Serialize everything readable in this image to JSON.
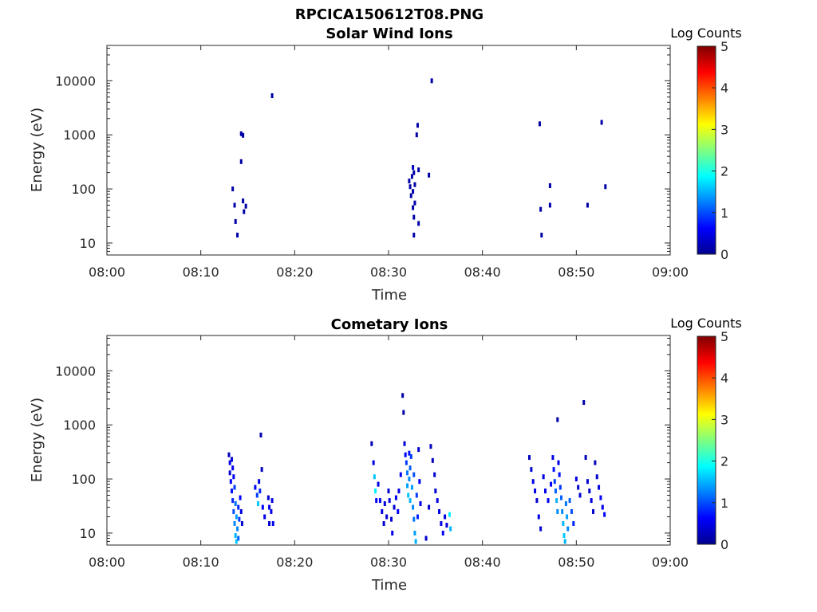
{
  "figure": {
    "title": "RPCICA150612T08.PNG"
  },
  "chart_data": [
    {
      "type": "heatmap",
      "title": "Solar Wind Ions",
      "xlabel": "Time",
      "ylabel": "Energy (eV)",
      "x_ticks": [
        "08:00",
        "08:10",
        "08:20",
        "08:30",
        "08:40",
        "08:50",
        "09:00"
      ],
      "xlim_minutes": [
        0,
        60
      ],
      "y_scale": "log",
      "y_ticks": [
        "10",
        "100",
        "1000",
        "10000"
      ],
      "y_tick_values": [
        10,
        100,
        1000,
        10000
      ],
      "ylim": [
        6,
        45000
      ],
      "colorbar": {
        "label": "Log Counts",
        "range": [
          0,
          5
        ],
        "ticks": [
          "0",
          "1",
          "2",
          "3",
          "4",
          "5"
        ],
        "colormap": "jet"
      },
      "points": [
        [
          13.4,
          100,
          0.2
        ],
        [
          13.6,
          50,
          0.2
        ],
        [
          13.7,
          25,
          0.2
        ],
        [
          13.9,
          14,
          0.2
        ],
        [
          14.3,
          320,
          0.2
        ],
        [
          14.3,
          1050,
          0.2
        ],
        [
          14.5,
          980,
          0.2
        ],
        [
          14.5,
          60,
          0.2
        ],
        [
          14.6,
          38,
          0.2
        ],
        [
          14.8,
          48,
          0.2
        ],
        [
          17.6,
          5300,
          0.2
        ],
        [
          32.2,
          140,
          0.2
        ],
        [
          32.3,
          110,
          0.2
        ],
        [
          32.4,
          75,
          0.2
        ],
        [
          32.5,
          170,
          0.2
        ],
        [
          32.6,
          250,
          0.3
        ],
        [
          32.6,
          90,
          0.2
        ],
        [
          32.6,
          45,
          0.2
        ],
        [
          32.7,
          200,
          0.2
        ],
        [
          32.7,
          30,
          0.2
        ],
        [
          32.7,
          14,
          0.2
        ],
        [
          32.8,
          120,
          0.2
        ],
        [
          32.8,
          55,
          0.2
        ],
        [
          33.0,
          1000,
          0.2
        ],
        [
          33.1,
          1500,
          0.2
        ],
        [
          33.2,
          225,
          0.2
        ],
        [
          33.2,
          23,
          0.2
        ],
        [
          34.3,
          180,
          0.2
        ],
        [
          34.6,
          10000,
          0.2
        ],
        [
          46.1,
          1600,
          0.2
        ],
        [
          46.2,
          42,
          0.2
        ],
        [
          46.3,
          14,
          0.2
        ],
        [
          47.2,
          115,
          0.2
        ],
        [
          47.2,
          50,
          0.2
        ],
        [
          51.2,
          50,
          0.2
        ],
        [
          52.7,
          1700,
          0.2
        ],
        [
          53.1,
          110,
          0.2
        ]
      ]
    },
    {
      "type": "heatmap",
      "title": "Cometary Ions",
      "xlabel": "Time",
      "ylabel": "Energy (eV)",
      "x_ticks": [
        "08:00",
        "08:10",
        "08:20",
        "08:30",
        "08:40",
        "08:50",
        "09:00"
      ],
      "xlim_minutes": [
        0,
        60
      ],
      "y_scale": "log",
      "y_ticks": [
        "10",
        "100",
        "1000",
        "10000"
      ],
      "y_tick_values": [
        10,
        100,
        1000,
        10000
      ],
      "ylim": [
        6,
        45000
      ],
      "colorbar": {
        "label": "Log Counts",
        "range": [
          0,
          5
        ],
        "ticks": [
          "0",
          "1",
          "2",
          "3",
          "4",
          "5"
        ],
        "colormap": "jet"
      },
      "points": [
        [
          13.0,
          280,
          0.3
        ],
        [
          13.1,
          200,
          0.5
        ],
        [
          13.1,
          130,
          0.4
        ],
        [
          13.2,
          90,
          0.6
        ],
        [
          13.3,
          230,
          0.4
        ],
        [
          13.3,
          60,
          0.7
        ],
        [
          13.4,
          160,
          0.5
        ],
        [
          13.4,
          40,
          0.8
        ],
        [
          13.5,
          110,
          0.6
        ],
        [
          13.5,
          25,
          1.0
        ],
        [
          13.6,
          70,
          0.9
        ],
        [
          13.6,
          15,
          1.3
        ],
        [
          13.7,
          35,
          1.2
        ],
        [
          13.7,
          9,
          1.5
        ],
        [
          13.8,
          20,
          1.4
        ],
        [
          13.8,
          7,
          1.6
        ],
        [
          13.9,
          12,
          1.3
        ],
        [
          14.0,
          30,
          0.8
        ],
        [
          14.0,
          8,
          1.1
        ],
        [
          14.1,
          18,
          0.9
        ],
        [
          14.2,
          45,
          0.6
        ],
        [
          14.3,
          25,
          0.5
        ],
        [
          14.4,
          15,
          0.4
        ],
        [
          15.8,
          70,
          0.6
        ],
        [
          16.0,
          50,
          0.9
        ],
        [
          16.1,
          35,
          1.6
        ],
        [
          16.2,
          90,
          0.5
        ],
        [
          16.3,
          60,
          0.8
        ],
        [
          16.4,
          650,
          0.2
        ],
        [
          16.5,
          150,
          0.3
        ],
        [
          16.6,
          30,
          0.6
        ],
        [
          16.8,
          20,
          0.5
        ],
        [
          17.2,
          45,
          0.4
        ],
        [
          17.3,
          30,
          0.5
        ],
        [
          17.3,
          15,
          0.4
        ],
        [
          17.5,
          25,
          0.5
        ],
        [
          17.6,
          40,
          0.5
        ],
        [
          17.7,
          15,
          0.5
        ],
        [
          28.2,
          450,
          0.3
        ],
        [
          28.4,
          200,
          0.5
        ],
        [
          28.5,
          110,
          1.6
        ],
        [
          28.6,
          60,
          1.8
        ],
        [
          28.7,
          40,
          0.6
        ],
        [
          28.9,
          80,
          0.5
        ],
        [
          29.1,
          40,
          0.6
        ],
        [
          29.3,
          25,
          0.5
        ],
        [
          29.5,
          15,
          0.4
        ],
        [
          29.6,
          35,
          0.5
        ],
        [
          29.8,
          20,
          0.4
        ],
        [
          30.0,
          60,
          0.4
        ],
        [
          30.1,
          40,
          0.5
        ],
        [
          30.3,
          18,
          0.4
        ],
        [
          30.4,
          10,
          0.5
        ],
        [
          30.6,
          30,
          0.4
        ],
        [
          30.8,
          45,
          0.5
        ],
        [
          31.0,
          25,
          0.6
        ],
        [
          31.1,
          60,
          0.5
        ],
        [
          31.3,
          120,
          0.6
        ],
        [
          31.5,
          3500,
          0.2
        ],
        [
          31.6,
          1700,
          0.2
        ],
        [
          31.7,
          450,
          0.4
        ],
        [
          31.8,
          280,
          0.6
        ],
        [
          31.9,
          200,
          0.9
        ],
        [
          32.0,
          130,
          1.2
        ],
        [
          32.0,
          75,
          1.4
        ],
        [
          32.1,
          50,
          1.6
        ],
        [
          32.2,
          300,
          0.7
        ],
        [
          32.2,
          100,
          1.3
        ],
        [
          32.3,
          40,
          1.5
        ],
        [
          32.3,
          160,
          1.1
        ],
        [
          32.4,
          260,
          0.9
        ],
        [
          32.5,
          70,
          1.4
        ],
        [
          32.6,
          30,
          1.3
        ],
        [
          32.7,
          18,
          1.2
        ],
        [
          32.7,
          120,
          1.0
        ],
        [
          32.8,
          10,
          1.4
        ],
        [
          32.9,
          7,
          1.5
        ],
        [
          33.0,
          50,
          0.9
        ],
        [
          33.1,
          20,
          0.8
        ],
        [
          33.2,
          350,
          0.4
        ],
        [
          33.3,
          90,
          0.6
        ],
        [
          33.4,
          35,
          0.5
        ],
        [
          34.0,
          8,
          0.4
        ],
        [
          34.3,
          30,
          0.4
        ],
        [
          34.5,
          400,
          0.3
        ],
        [
          34.7,
          220,
          0.3
        ],
        [
          34.9,
          120,
          0.4
        ],
        [
          35.0,
          60,
          0.4
        ],
        [
          35.2,
          40,
          0.5
        ],
        [
          35.4,
          25,
          0.5
        ],
        [
          35.6,
          15,
          0.5
        ],
        [
          35.8,
          10,
          0.6
        ],
        [
          36.0,
          20,
          0.5
        ],
        [
          36.2,
          14,
          0.4
        ],
        [
          36.5,
          22,
          1.8
        ],
        [
          36.6,
          12,
          1.5
        ],
        [
          45.0,
          250,
          0.3
        ],
        [
          45.2,
          150,
          0.4
        ],
        [
          45.4,
          90,
          0.5
        ],
        [
          45.6,
          60,
          0.5
        ],
        [
          45.8,
          40,
          0.4
        ],
        [
          46.0,
          20,
          0.5
        ],
        [
          46.2,
          12,
          0.4
        ],
        [
          46.5,
          110,
          0.5
        ],
        [
          46.7,
          60,
          0.5
        ],
        [
          47.0,
          40,
          0.6
        ],
        [
          47.3,
          80,
          0.6
        ],
        [
          47.5,
          250,
          0.5
        ],
        [
          47.6,
          150,
          0.7
        ],
        [
          47.7,
          90,
          0.9
        ],
        [
          47.8,
          60,
          1.1
        ],
        [
          47.9,
          40,
          1.5
        ],
        [
          48.0,
          1250,
          0.2
        ],
        [
          48.0,
          25,
          1.3
        ],
        [
          48.1,
          200,
          0.5
        ],
        [
          48.2,
          120,
          0.7
        ],
        [
          48.3,
          70,
          0.9
        ],
        [
          48.4,
          45,
          1.1
        ],
        [
          48.5,
          25,
          1.3
        ],
        [
          48.6,
          15,
          1.5
        ],
        [
          48.7,
          9,
          1.6
        ],
        [
          48.8,
          7,
          1.5
        ],
        [
          48.9,
          35,
          1.2
        ],
        [
          49.0,
          20,
          1.4
        ],
        [
          49.1,
          12,
          1.3
        ],
        [
          49.3,
          40,
          1.1
        ],
        [
          49.5,
          25,
          1.0
        ],
        [
          49.7,
          15,
          0.8
        ],
        [
          50.0,
          100,
          0.5
        ],
        [
          50.2,
          70,
          0.4
        ],
        [
          50.4,
          50,
          0.4
        ],
        [
          50.8,
          2600,
          0.2
        ],
        [
          51.0,
          250,
          0.3
        ],
        [
          51.2,
          90,
          0.4
        ],
        [
          51.4,
          60,
          0.4
        ],
        [
          51.6,
          40,
          0.5
        ],
        [
          51.8,
          25,
          0.4
        ],
        [
          52.0,
          200,
          0.3
        ],
        [
          52.2,
          110,
          0.4
        ],
        [
          52.4,
          70,
          0.5
        ],
        [
          52.6,
          45,
          0.6
        ],
        [
          52.8,
          30,
          0.5
        ],
        [
          53.0,
          22,
          0.6
        ]
      ]
    }
  ]
}
